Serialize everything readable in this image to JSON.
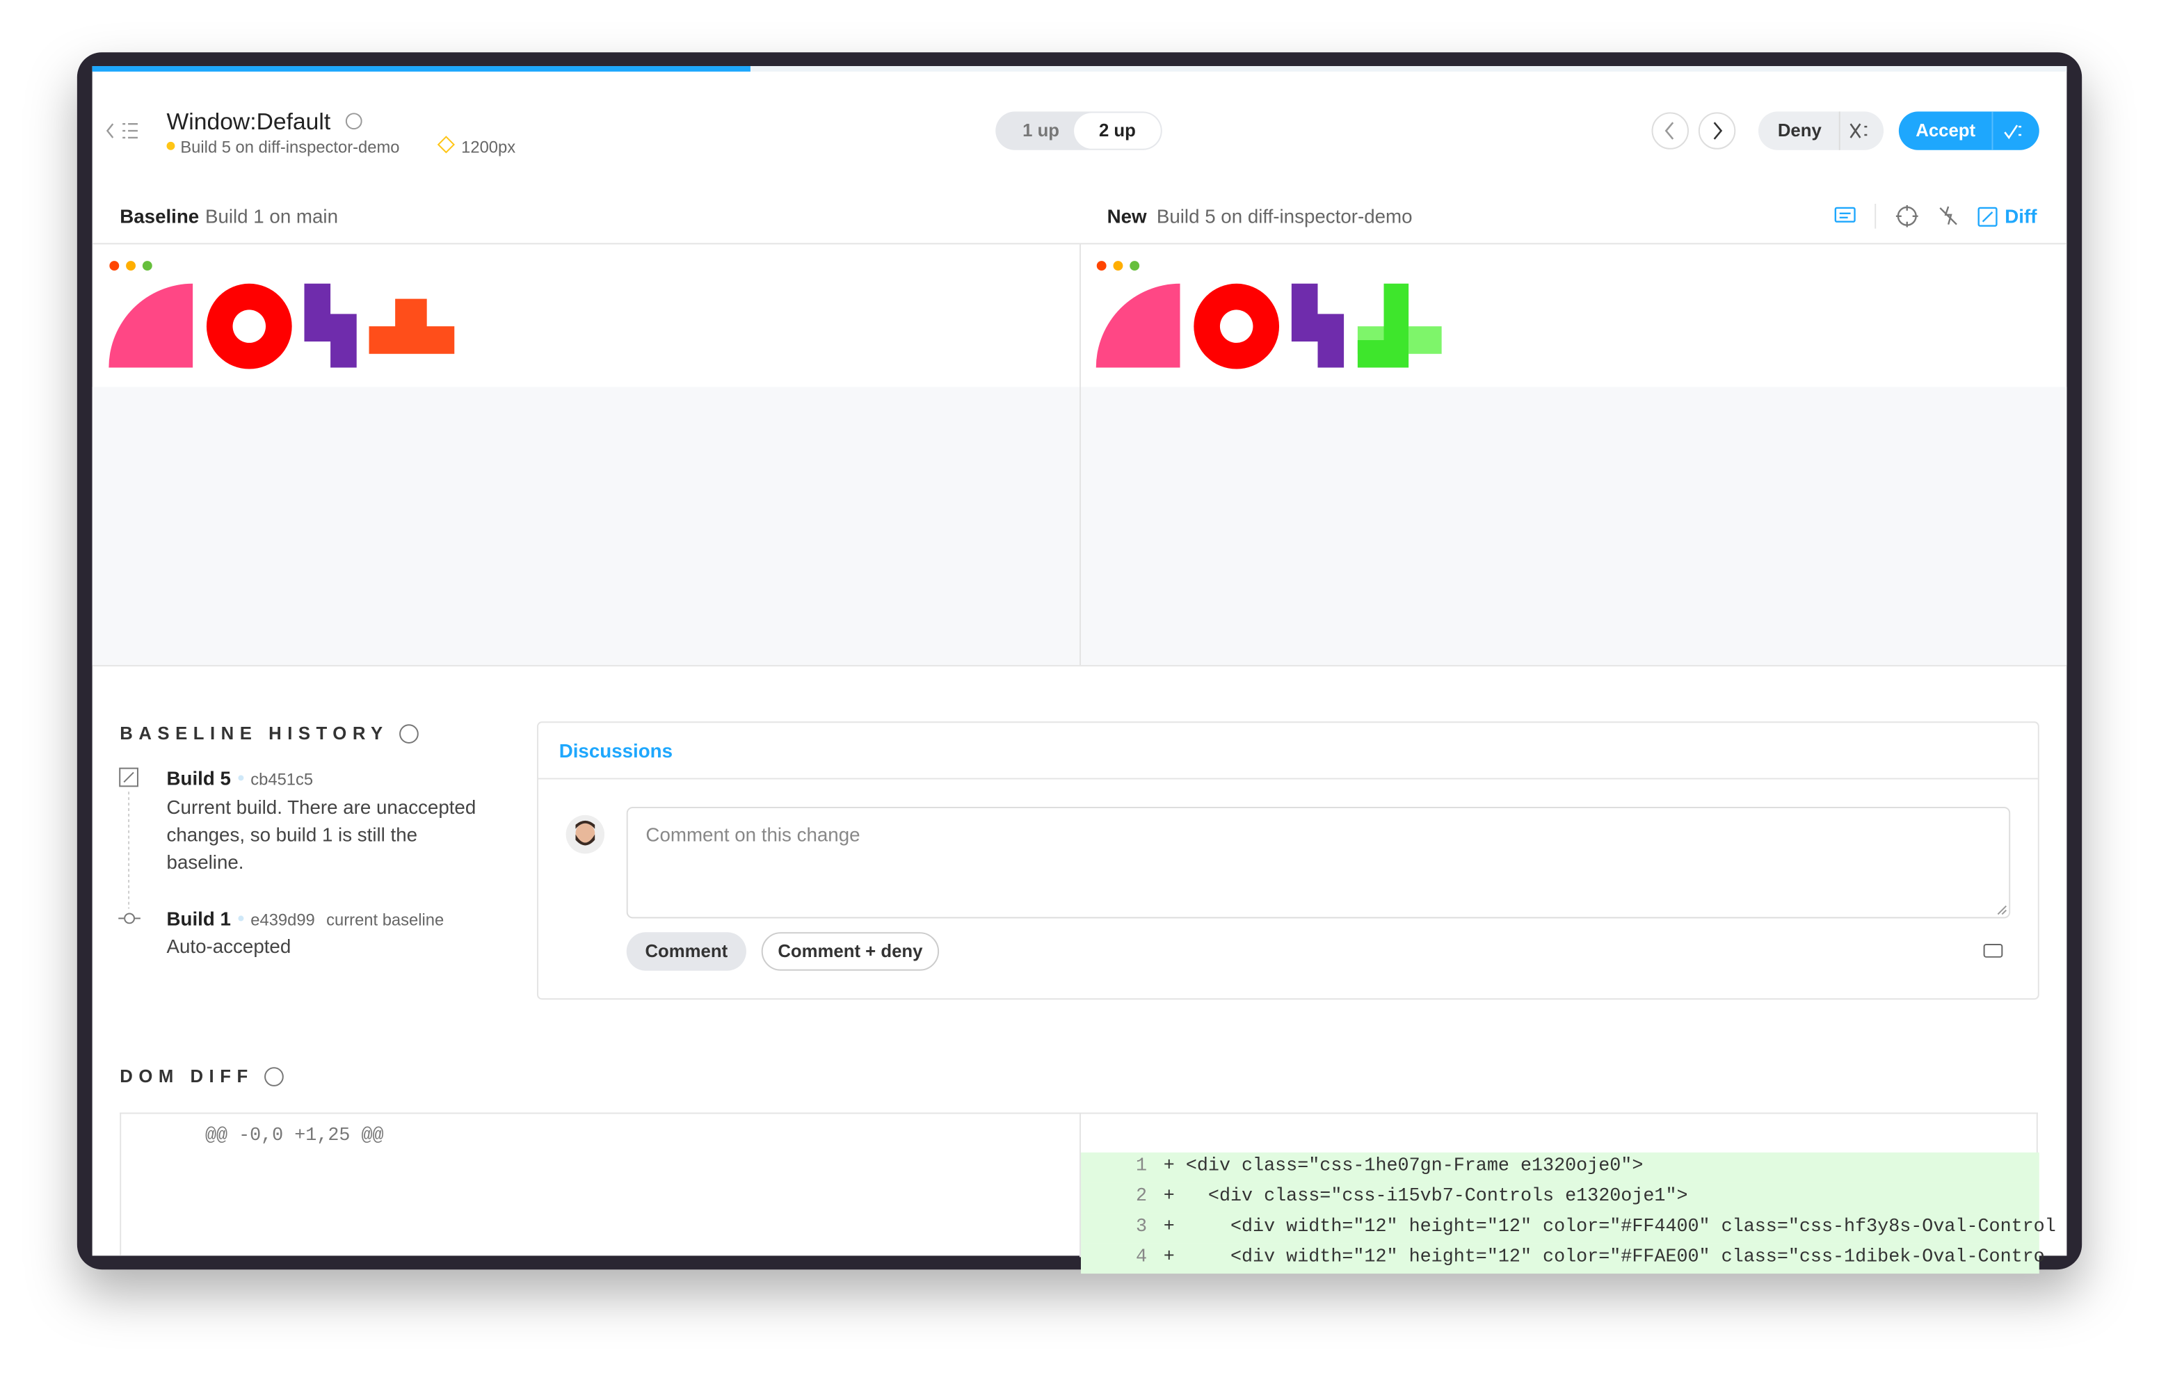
{
  "header": {
    "title": "Window:Default",
    "build": "Build 5 on diff-inspector-demo",
    "viewport": "1200px"
  },
  "toggle": [
    "1 up",
    "2 up"
  ],
  "actions": {
    "deny": "Deny",
    "accept": "Accept"
  },
  "panes": {
    "baseline": {
      "label": "Baseline",
      "description": "Build 1 on main"
    },
    "new": {
      "label": "New",
      "description": "Build 5 on diff-inspector-demo"
    }
  },
  "toolbar": {
    "diff": "Diff"
  },
  "history": {
    "title": "BASELINE HISTORY",
    "entries": [
      {
        "build": "Build 5",
        "hash": "cb451c5",
        "description": "Current build. There are unaccepted changes, so build 1 is still the baseline."
      },
      {
        "build": "Build 1",
        "hash": "e439d99",
        "tag": "current baseline",
        "description": "Auto-accepted"
      }
    ]
  },
  "discussions": {
    "tab": "Discussions",
    "placeholder": "Comment on this change",
    "buttons": [
      "Comment",
      "Comment + deny"
    ]
  },
  "dom_diff": {
    "title": "DOM DIFF",
    "hunk": "@@ -0,0 +1,25 @@",
    "lines": [
      {
        "number": 1,
        "text": "+ <div class=\"css-1he07gn-Frame e1320oje0\">"
      },
      {
        "number": 2,
        "text": "+   <div class=\"css-i15vb7-Controls e1320oje1\">"
      },
      {
        "number": 3,
        "text": "+     <div width=\"12\" height=\"12\" color=\"#FF4400\" class=\"css-hf3y8s-Oval-Control"
      },
      {
        "number": 4,
        "text": "+     <div width=\"12\" height=\"12\" color=\"#FFAE00\" class=\"css-1dibek-Oval-Contro"
      }
    ]
  }
}
